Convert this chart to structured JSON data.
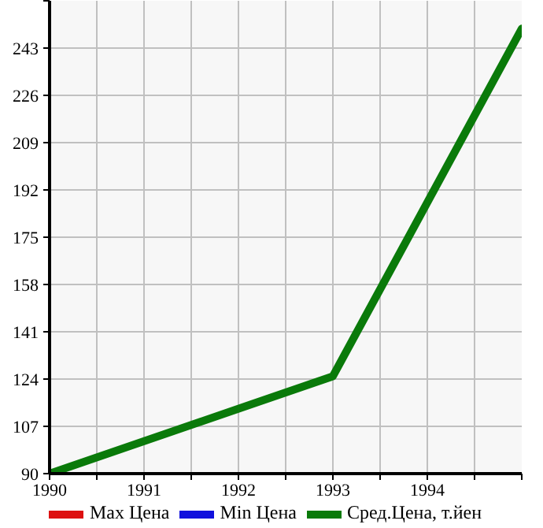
{
  "chart_data": {
    "type": "line",
    "x": [
      1990,
      1993,
      1995
    ],
    "series": [
      {
        "name": "Max Цена",
        "color": "#dd1111",
        "values": [
          null,
          null,
          null
        ]
      },
      {
        "name": "Min Цена",
        "color": "#1111dd",
        "values": [
          null,
          null,
          null
        ]
      },
      {
        "name": "Сред.Цена, т.йен",
        "color": "#0a7a0a",
        "values": [
          90,
          125,
          250
        ]
      }
    ],
    "xlim": [
      1990,
      1995
    ],
    "xticks": [
      1990,
      {
        "value": 1990.5,
        "label": null
      },
      1991,
      {
        "value": 1991.5,
        "label": null
      },
      1992,
      {
        "value": 1992.5,
        "label": null
      },
      1993,
      {
        "value": 1993.5,
        "label": null
      },
      1994,
      {
        "value": 1994.5,
        "label": null
      },
      {
        "value": 1995,
        "label": null
      }
    ],
    "ylim": [
      90,
      260
    ],
    "yticks": [
      90,
      107,
      124,
      141,
      158,
      175,
      192,
      209,
      226,
      243,
      {
        "value": 260,
        "label": null
      }
    ],
    "grid": true,
    "legend": "bottom",
    "marker": "none",
    "line_style": "solid"
  }
}
